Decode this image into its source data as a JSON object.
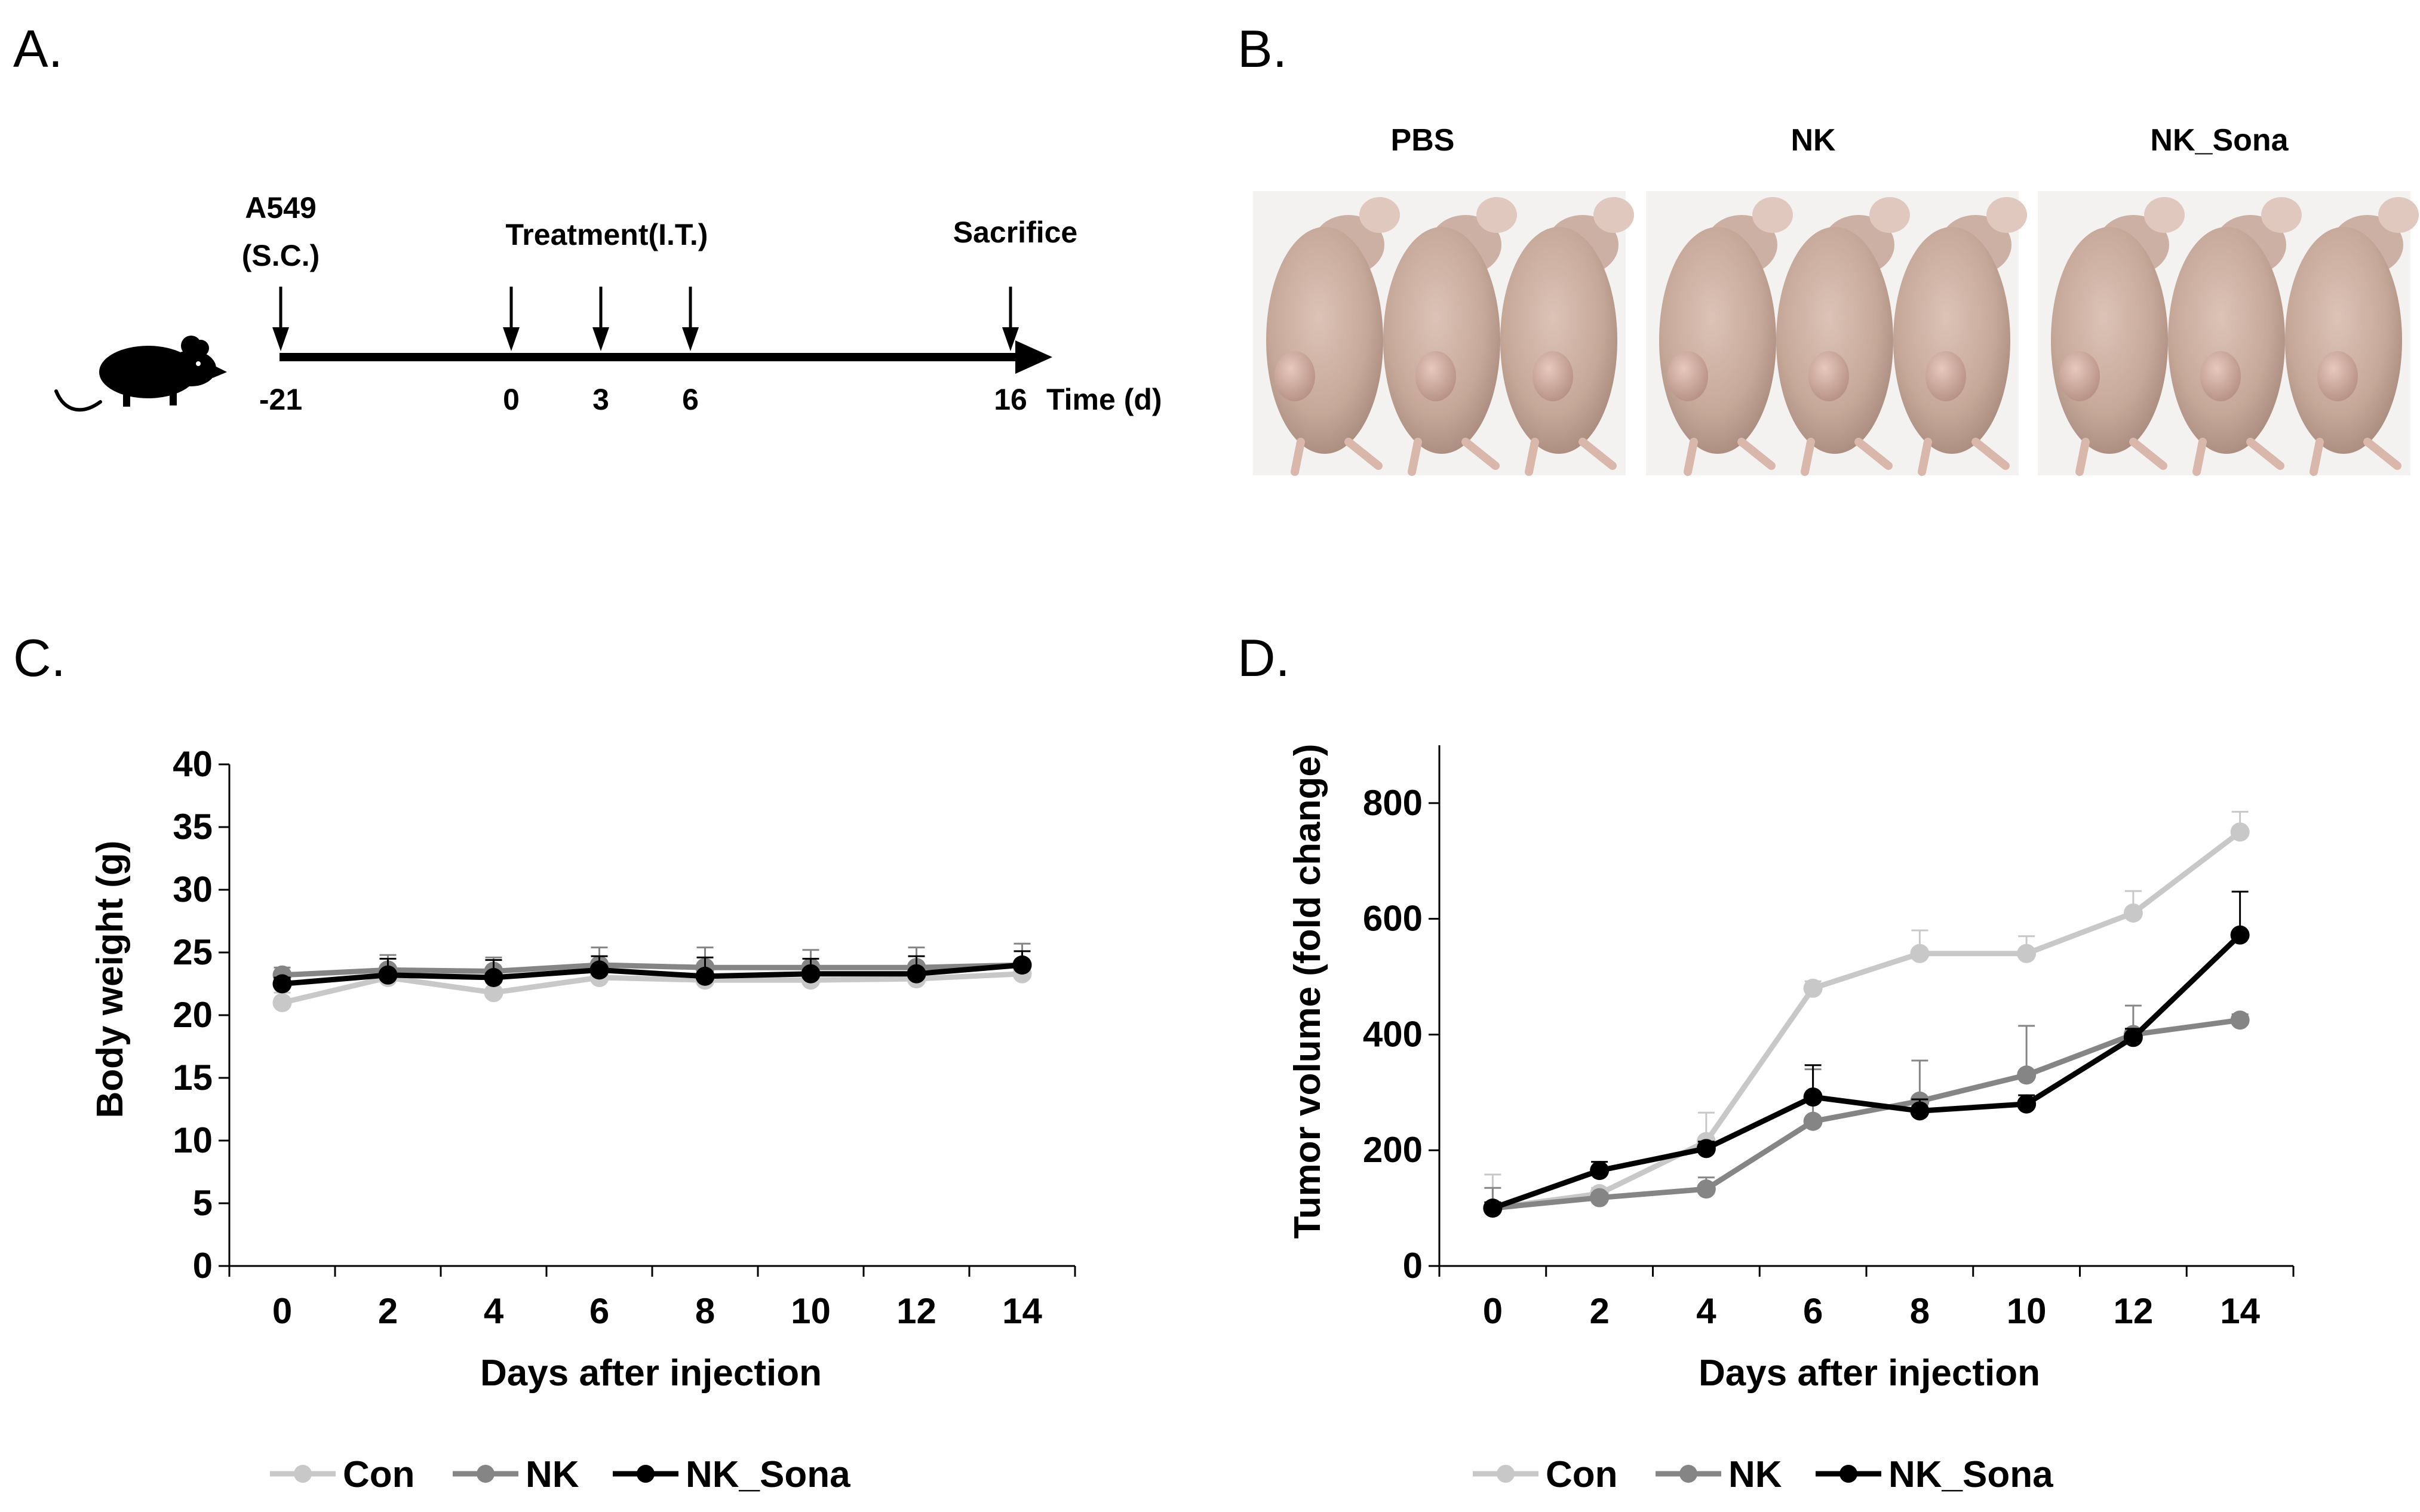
{
  "panels": {
    "a": {
      "letter": "A.",
      "inoculation": {
        "line1": "A549",
        "line2": "(S.C.)"
      },
      "treatment_label": "Treatment(I.T.)",
      "sacrifice_label": "Sacrifice",
      "axis_label": "Time (d)",
      "ticks": [
        {
          "day": -21,
          "label": "-21"
        },
        {
          "day": 0,
          "label": "0"
        },
        {
          "day": 3,
          "label": "3"
        },
        {
          "day": 6,
          "label": "6"
        },
        {
          "day": 16,
          "label": "16"
        }
      ],
      "mouse_icon": "mouse-icon"
    },
    "b": {
      "letter": "B.",
      "groups": [
        "PBS",
        "NK",
        "NK_Sona"
      ]
    },
    "c": {
      "letter": "C."
    },
    "d": {
      "letter": "D."
    }
  },
  "colors": {
    "con": "#c8c8c8",
    "nk": "#858585",
    "nk_sona": "#000000",
    "axis": "#000000"
  },
  "chart_data": [
    {
      "id": "C",
      "type": "line",
      "title": "",
      "xlabel": "Days after injection",
      "ylabel": "Body weight (g)",
      "x": [
        0,
        2,
        4,
        6,
        8,
        10,
        12,
        14
      ],
      "xlim": [
        -1,
        15
      ],
      "ylim": [
        0,
        40
      ],
      "yticks": [
        0,
        5,
        10,
        15,
        20,
        25,
        30,
        35,
        40
      ],
      "legend": "bottom",
      "series": [
        {
          "name": "Con",
          "key": "con",
          "values": [
            21.0,
            23.0,
            21.8,
            23.0,
            22.8,
            22.8,
            22.9,
            23.3
          ],
          "errors": [
            0.8,
            0.8,
            0.8,
            0.8,
            0.8,
            0.8,
            0.8,
            0.8
          ]
        },
        {
          "name": "NK",
          "key": "nk",
          "values": [
            23.2,
            23.6,
            23.5,
            24.0,
            23.8,
            23.8,
            23.8,
            24.0
          ],
          "errors": [
            0.6,
            1.2,
            1.1,
            1.4,
            1.6,
            1.4,
            1.6,
            1.7
          ]
        },
        {
          "name": "NK_Sona",
          "key": "nk_sona",
          "values": [
            22.5,
            23.2,
            23.0,
            23.6,
            23.1,
            23.3,
            23.3,
            24.0
          ],
          "errors": [
            0.5,
            1.3,
            1.4,
            1.1,
            1.5,
            1.2,
            1.4,
            1.1
          ]
        }
      ]
    },
    {
      "id": "D",
      "type": "line",
      "title": "",
      "xlabel": "Days after injection",
      "ylabel": "Tumor volume (fold change)",
      "x": [
        0,
        2,
        4,
        6,
        8,
        10,
        12,
        14
      ],
      "xlim": [
        -1,
        15
      ],
      "ylim": [
        0,
        900
      ],
      "yticks": [
        0,
        200,
        400,
        600,
        800
      ],
      "legend": "bottom",
      "series": [
        {
          "name": "Con",
          "key": "con",
          "values": [
            100,
            125,
            215,
            480,
            540,
            540,
            610,
            750
          ],
          "errors": [
            58,
            10,
            50,
            12,
            40,
            30,
            38,
            35
          ]
        },
        {
          "name": "NK",
          "key": "nk",
          "values": [
            100,
            118,
            133,
            250,
            285,
            330,
            400,
            425
          ],
          "errors": [
            35,
            8,
            20,
            90,
            70,
            85,
            50,
            10
          ]
        },
        {
          "name": "NK_Sona",
          "key": "nk_sona",
          "values": [
            100,
            165,
            203,
            292,
            268,
            280,
            395,
            572
          ],
          "errors": [
            10,
            15,
            12,
            55,
            20,
            15,
            15,
            75
          ]
        }
      ]
    }
  ]
}
